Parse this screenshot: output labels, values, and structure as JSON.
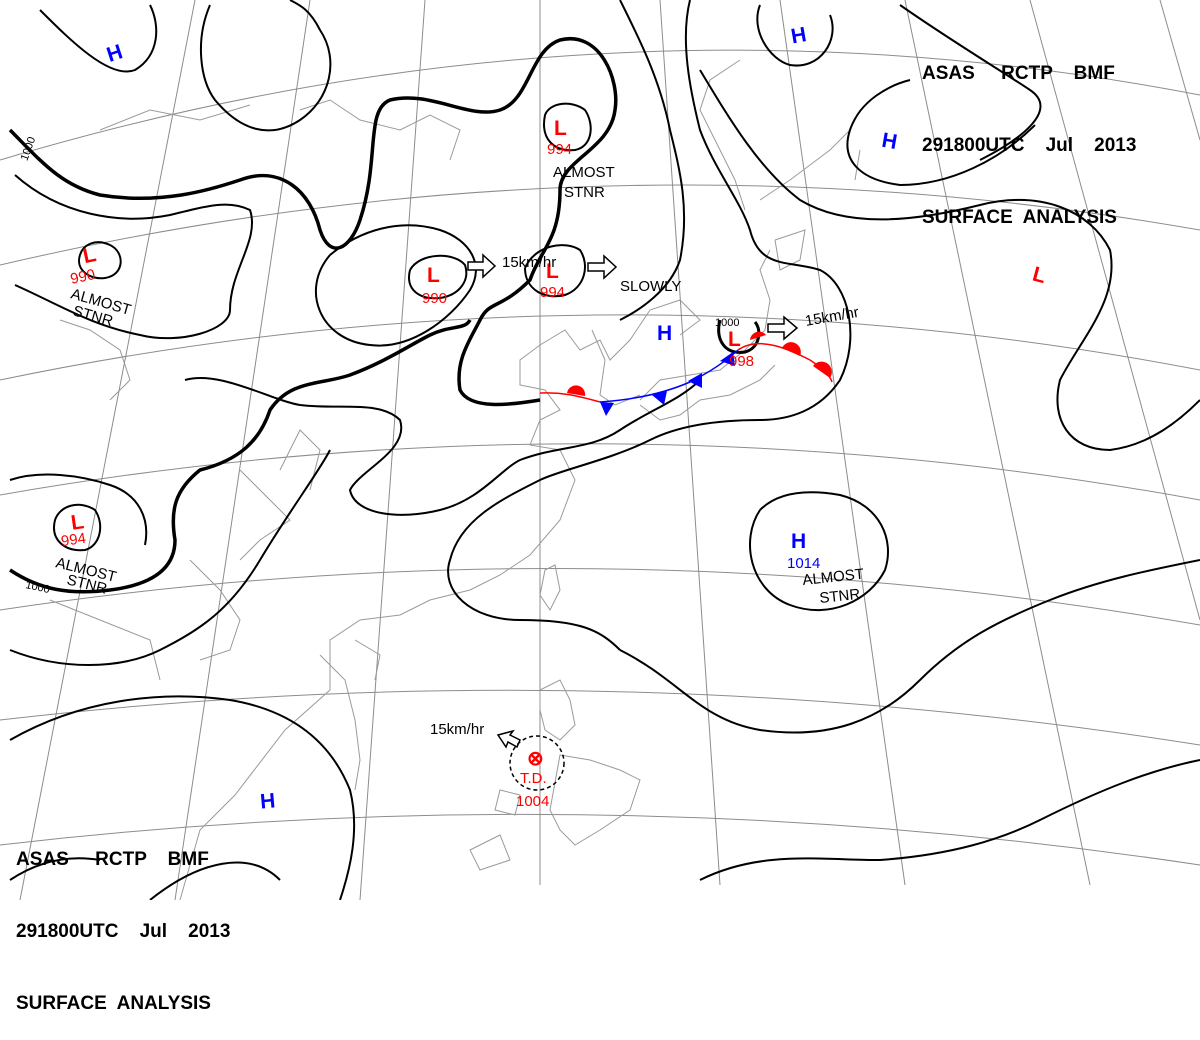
{
  "header": {
    "line1": "ASAS     RCTP    BMF",
    "line2": "291800UTC    Jul    2013",
    "line3": "SURFACE  ANALYSIS"
  },
  "colors": {
    "low": "#ff0000",
    "high": "#0000ff",
    "isobar": "#000000",
    "coast": "#999999",
    "grid": "#8c8c8c",
    "warm_front": "#ff0000",
    "cold_front": "#0000ff"
  },
  "systems": [
    {
      "id": "low-nw",
      "symbol": "L",
      "type": "low",
      "pressure": "990",
      "note": ""
    },
    {
      "id": "low-mongolia",
      "symbol": "L",
      "type": "low",
      "pressure": "990",
      "note": ""
    },
    {
      "id": "low-north",
      "symbol": "L",
      "type": "low",
      "pressure": "994",
      "note": ""
    },
    {
      "id": "low-manchuria",
      "symbol": "L",
      "type": "low",
      "pressure": "994",
      "note": ""
    },
    {
      "id": "low-sw",
      "symbol": "L",
      "type": "low",
      "pressure": "994",
      "note": ""
    },
    {
      "id": "low-japan",
      "symbol": "L",
      "type": "low",
      "pressure": "998",
      "note": ""
    },
    {
      "id": "low-east",
      "symbol": "L",
      "type": "low",
      "pressure": "",
      "note": ""
    },
    {
      "id": "high-nw",
      "symbol": "H",
      "type": "high",
      "pressure": "",
      "note": ""
    },
    {
      "id": "high-ne1",
      "symbol": "H",
      "type": "high",
      "pressure": "",
      "note": ""
    },
    {
      "id": "high-ne2",
      "symbol": "H",
      "type": "high",
      "pressure": "",
      "note": ""
    },
    {
      "id": "high-korea",
      "symbol": "H",
      "type": "high",
      "pressure": "",
      "note": ""
    },
    {
      "id": "high-pacific",
      "symbol": "H",
      "type": "high",
      "pressure": "1014",
      "note": ""
    },
    {
      "id": "high-south",
      "symbol": "H",
      "type": "high",
      "pressure": "",
      "note": ""
    }
  ],
  "td": {
    "symbol": "⊗",
    "label": "T.D.",
    "pressure": "1004"
  },
  "texts": {
    "almost1": "ALMOST",
    "stnr1": "STNR",
    "almost2": "ALMOST",
    "stnr2": "STNR",
    "almost3": "ALMOST",
    "stnr3": "STNR",
    "almost4": "ALMOST",
    "stnr4": "STNR",
    "slowly": "SLOWLY",
    "speed1": "15km/hr",
    "speed2": "15km/hr",
    "speed3": "15km/hr",
    "iso1000_a": "1000",
    "iso1000_b": "1000",
    "iso1000_c": "1000"
  }
}
